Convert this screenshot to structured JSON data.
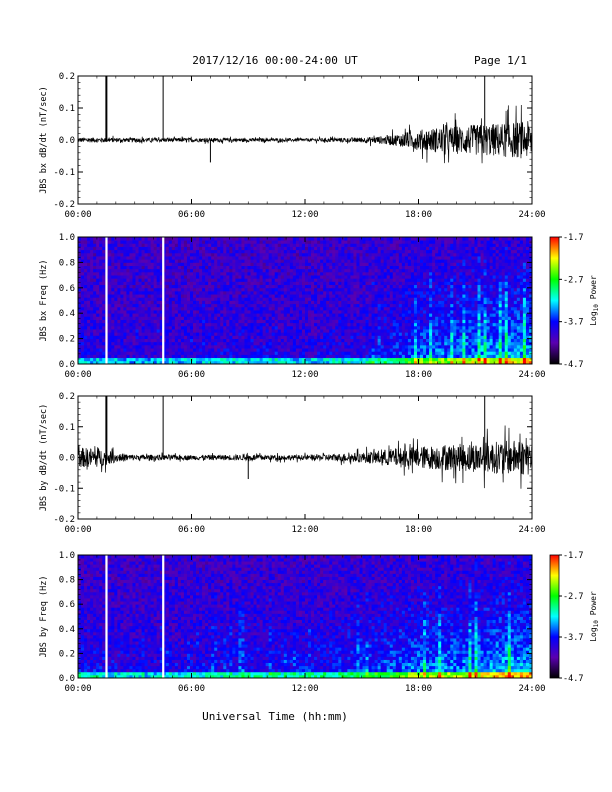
{
  "header": {
    "title": "2017/12/16  00:00-24:00 UT",
    "page": "Page 1/1"
  },
  "xaxis_label": "Universal Time (hh:mm)",
  "colorbar": {
    "label_prefix": "Log",
    "label_sub": "10",
    "label_suffix": " Power",
    "ticks": [
      "-1.7",
      "-2.7",
      "-3.7",
      "-4.7"
    ],
    "colors": [
      "#ff0000",
      "#ffff00",
      "#00ff00",
      "#00ffff",
      "#0000ff",
      "#5a00b0",
      "#000000"
    ]
  },
  "chart_data": [
    {
      "type": "line",
      "ylabel": "JBS bx dB/dt (nT/sec)",
      "x_ticks": [
        "00:00",
        "06:00",
        "12:00",
        "18:00",
        "24:00"
      ],
      "y_ticks": [
        "0.2",
        "0.1",
        "0.0",
        "-0.1",
        "-0.2"
      ],
      "xlim": [
        0,
        24
      ],
      "ylim": [
        -0.2,
        0.2
      ],
      "noise_envelope": {
        "hours": [
          0,
          3,
          6,
          9,
          12,
          15,
          16,
          17,
          18,
          19,
          20,
          21,
          22,
          23,
          24
        ],
        "amplitude": [
          0.01,
          0.008,
          0.008,
          0.007,
          0.006,
          0.01,
          0.015,
          0.025,
          0.04,
          0.05,
          0.055,
          0.06,
          0.065,
          0.07,
          0.075
        ]
      },
      "spikes": [
        {
          "hour": 1.5,
          "value": 0.2
        },
        {
          "hour": 4.5,
          "value": 0.2
        },
        {
          "hour": 7.0,
          "value": -0.07
        },
        {
          "hour": 21.5,
          "value": 0.2
        }
      ]
    },
    {
      "type": "heatmap",
      "ylabel": "JBS bx Freq (Hz)",
      "x_ticks": [
        "00:00",
        "06:00",
        "12:00",
        "18:00",
        "24:00"
      ],
      "y_ticks": [
        "1.0",
        "0.8",
        "0.6",
        "0.4",
        "0.2",
        "0.0"
      ],
      "xlim": [
        0,
        24
      ],
      "ylim": [
        0,
        1.0
      ],
      "zlim": [
        -4.7,
        -1.7
      ],
      "gaps": [
        1.5,
        4.5
      ],
      "activity_hours": [
        0,
        3,
        6,
        9,
        12,
        15,
        17,
        18,
        20,
        22,
        24
      ],
      "activity_level": [
        0.2,
        0.12,
        0.15,
        0.2,
        0.15,
        0.25,
        0.4,
        0.55,
        0.6,
        0.75,
        0.8
      ]
    },
    {
      "type": "line",
      "ylabel": "JBS by dB/dt (nT/sec)",
      "x_ticks": [
        "00:00",
        "06:00",
        "12:00",
        "18:00",
        "24:00"
      ],
      "y_ticks": [
        "0.2",
        "0.1",
        "0.0",
        "-0.1",
        "-0.2"
      ],
      "xlim": [
        0,
        24
      ],
      "ylim": [
        -0.2,
        0.2
      ],
      "noise_envelope": {
        "hours": [
          0,
          1,
          2,
          3,
          6,
          9,
          12,
          15,
          16,
          17,
          18,
          19,
          20,
          21,
          22,
          23,
          24
        ],
        "amplitude": [
          0.04,
          0.04,
          0.02,
          0.012,
          0.01,
          0.012,
          0.01,
          0.02,
          0.03,
          0.04,
          0.045,
          0.05,
          0.055,
          0.06,
          0.065,
          0.07,
          0.075
        ]
      },
      "spikes": [
        {
          "hour": 1.5,
          "value": 0.2
        },
        {
          "hour": 4.5,
          "value": 0.2
        },
        {
          "hour": 9.0,
          "value": -0.07
        },
        {
          "hour": 21.5,
          "value": 0.2
        }
      ]
    },
    {
      "type": "heatmap",
      "ylabel": "JBS by Freq (Hz)",
      "x_ticks": [
        "00:00",
        "06:00",
        "12:00",
        "18:00",
        "24:00"
      ],
      "y_ticks": [
        "1.0",
        "0.8",
        "0.6",
        "0.4",
        "0.2",
        "0.0"
      ],
      "xlim": [
        0,
        24
      ],
      "ylim": [
        0,
        1.0
      ],
      "zlim": [
        -4.7,
        -1.7
      ],
      "gaps": [
        1.5,
        4.5
      ],
      "activity_hours": [
        0,
        3,
        6,
        9,
        12,
        15,
        17,
        18,
        20,
        22,
        24
      ],
      "activity_level": [
        0.3,
        0.18,
        0.22,
        0.3,
        0.28,
        0.4,
        0.55,
        0.62,
        0.65,
        0.8,
        0.85
      ]
    }
  ]
}
